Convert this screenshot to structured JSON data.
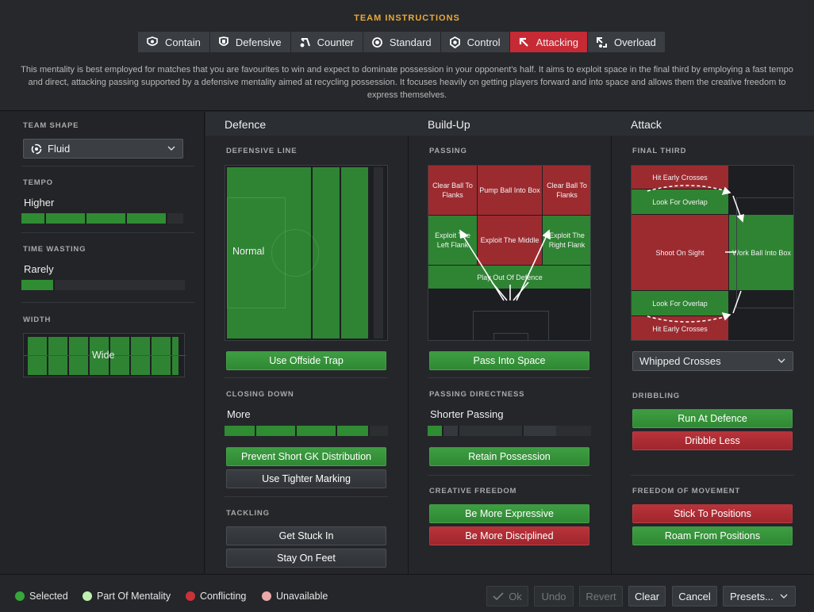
{
  "header": {
    "title": "TEAM INSTRUCTIONS",
    "description": "This mentality is best employed for matches that you are favourites to win and expect to dominate possession in your opponent's half. It aims to exploit space in the final third by employing a fast tempo and direct, attacking passing supported by a defensive mentality aimed at recycling possession. It focuses heavily on getting players forward and into space and allows them the creative freedom to express themselves."
  },
  "mentalities": [
    {
      "label": "Contain",
      "icon": "contain-icon"
    },
    {
      "label": "Defensive",
      "icon": "shield-icon"
    },
    {
      "label": "Counter",
      "icon": "counter-icon"
    },
    {
      "label": "Standard",
      "icon": "standard-icon"
    },
    {
      "label": "Control",
      "icon": "control-icon"
    },
    {
      "label": "Attacking",
      "icon": "attacking-icon",
      "active": true
    },
    {
      "label": "Overload",
      "icon": "overload-icon"
    }
  ],
  "left": {
    "team_shape_label": "TEAM SHAPE",
    "team_shape_value": "Fluid",
    "tempo_label": "TEMPO",
    "tempo_value": "Higher",
    "tempo_level": 0.8,
    "time_wasting_label": "TIME WASTING",
    "time_wasting_value": "Rarely",
    "time_wasting_level": 0.2,
    "width_label": "WIDTH",
    "width_value": "Wide"
  },
  "defence": {
    "title": "Defence",
    "line_label": "DEFENSIVE LINE",
    "line_value": "Normal",
    "offside_trap": "Use Offside Trap",
    "closing_label": "CLOSING DOWN",
    "closing_value": "More",
    "closing_level": 0.8,
    "gk_dist": "Prevent Short GK Distribution",
    "tighter_marking": "Use Tighter Marking",
    "tackling_label": "TACKLING",
    "get_stuck_in": "Get Stuck In",
    "stay_on_feet": "Stay On Feet"
  },
  "buildup": {
    "title": "Build-Up",
    "passing_label": "PASSING",
    "zones": {
      "clear_flanks_l": "Clear Ball To Flanks",
      "pump_box": "Pump Ball Into Box",
      "clear_flanks_r": "Clear Ball To Flanks",
      "exploit_left": "Exploit The Left Flank",
      "exploit_middle": "Exploit The Middle",
      "exploit_right": "Exploit The Right Flank",
      "play_out": "Play Out Of Defence"
    },
    "pass_space": "Pass Into Space",
    "directness_label": "PASSING DIRECTNESS",
    "directness_value": "Shorter Passing",
    "directness_level": 0.1,
    "retain": "Retain Possession",
    "creative_label": "CREATIVE FREEDOM",
    "expressive": "Be More Expressive",
    "disciplined": "Be More Disciplined"
  },
  "attack": {
    "title": "Attack",
    "final_third_label": "FINAL THIRD",
    "zones": {
      "early_top": "Hit Early Crosses",
      "overlap_top": "Look For Overlap",
      "shoot": "Shoot On Sight",
      "work_box": "Work Ball Into Box",
      "overlap_bottom": "Look For Overlap",
      "early_bottom": "Hit Early Crosses"
    },
    "crossing": "Whipped Crosses",
    "dribbling_label": "DRIBBLING",
    "run_at_defence": "Run At Defence",
    "dribble_less": "Dribble Less",
    "freedom_label": "FREEDOM OF MOVEMENT",
    "stick_positions": "Stick To Positions",
    "roam_positions": "Roam From Positions"
  },
  "legend": [
    {
      "label": "Selected",
      "color": "#35a63a"
    },
    {
      "label": "Part Of Mentality",
      "color": "#bff0b0"
    },
    {
      "label": "Conflicting",
      "color": "#c8323a"
    },
    {
      "label": "Unavailable",
      "color": "#e9a9a9"
    }
  ],
  "footer": {
    "ok": "Ok",
    "undo": "Undo",
    "revert": "Revert",
    "clear": "Clear",
    "cancel": "Cancel",
    "presets": "Presets..."
  }
}
